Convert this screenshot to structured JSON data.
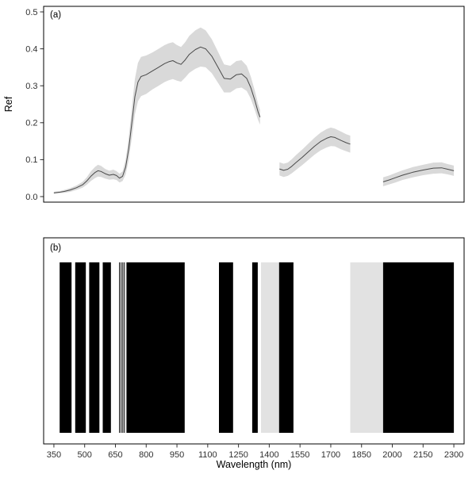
{
  "figure": {
    "background": "#ffffff",
    "panels": [
      {
        "id": "a",
        "label": "(a)"
      },
      {
        "id": "b",
        "label": "(b)"
      }
    ],
    "y_axis_title": "Ref",
    "x_axis_title": "Wavelength (nm)"
  },
  "chart_data": [
    {
      "type": "line",
      "panel": "(a)",
      "ylabel": "Ref",
      "ylim": [
        0.0,
        0.5
      ],
      "xlim": [
        350,
        2300
      ],
      "grid": false,
      "legend": "none",
      "line_color": "#4a4a4a",
      "band_color": "#d9d9d9",
      "yticks": [
        0.0,
        0.1,
        0.2,
        0.3,
        0.4,
        0.5
      ],
      "ytick_labels": [
        "0.0",
        "0.1",
        "0.2",
        "0.3",
        "0.4",
        "0.5"
      ],
      "segments": [
        {
          "x": [
            350,
            380,
            400,
            430,
            460,
            490,
            510,
            530,
            550,
            565,
            580,
            600,
            620,
            640,
            655,
            670,
            685,
            700,
            715,
            730,
            745,
            760,
            775,
            800,
            830,
            860,
            890,
            910,
            930,
            950,
            970,
            990,
            1010,
            1040,
            1065,
            1090,
            1120,
            1150,
            1180,
            1210,
            1240,
            1265,
            1290,
            1310,
            1330,
            1345,
            1355
          ],
          "mean": [
            0.01,
            0.012,
            0.014,
            0.018,
            0.024,
            0.032,
            0.042,
            0.055,
            0.065,
            0.07,
            0.068,
            0.062,
            0.058,
            0.06,
            0.057,
            0.05,
            0.055,
            0.08,
            0.13,
            0.2,
            0.27,
            0.31,
            0.325,
            0.33,
            0.34,
            0.35,
            0.36,
            0.365,
            0.368,
            0.362,
            0.358,
            0.37,
            0.385,
            0.398,
            0.405,
            0.4,
            0.38,
            0.35,
            0.32,
            0.318,
            0.33,
            0.332,
            0.32,
            0.295,
            0.26,
            0.23,
            0.215
          ],
          "lower": [
            0.007,
            0.009,
            0.01,
            0.013,
            0.018,
            0.024,
            0.032,
            0.042,
            0.05,
            0.054,
            0.053,
            0.049,
            0.046,
            0.047,
            0.045,
            0.038,
            0.042,
            0.06,
            0.1,
            0.16,
            0.222,
            0.258,
            0.272,
            0.278,
            0.29,
            0.3,
            0.31,
            0.315,
            0.318,
            0.314,
            0.311,
            0.322,
            0.335,
            0.346,
            0.352,
            0.35,
            0.334,
            0.308,
            0.282,
            0.282,
            0.293,
            0.295,
            0.286,
            0.265,
            0.234,
            0.208,
            0.195
          ],
          "upper": [
            0.013,
            0.015,
            0.018,
            0.023,
            0.03,
            0.04,
            0.052,
            0.068,
            0.08,
            0.086,
            0.083,
            0.075,
            0.07,
            0.073,
            0.069,
            0.062,
            0.068,
            0.1,
            0.16,
            0.24,
            0.318,
            0.362,
            0.378,
            0.382,
            0.39,
            0.4,
            0.41,
            0.415,
            0.418,
            0.41,
            0.405,
            0.418,
            0.435,
            0.45,
            0.458,
            0.45,
            0.426,
            0.392,
            0.358,
            0.354,
            0.367,
            0.369,
            0.354,
            0.325,
            0.286,
            0.252,
            0.235
          ]
        },
        {
          "x": [
            1450,
            1470,
            1490,
            1510,
            1530,
            1560,
            1590,
            1620,
            1650,
            1680,
            1700,
            1720,
            1750,
            1775,
            1795
          ],
          "mean": [
            0.075,
            0.071,
            0.074,
            0.082,
            0.092,
            0.106,
            0.121,
            0.136,
            0.149,
            0.158,
            0.162,
            0.16,
            0.152,
            0.146,
            0.142
          ],
          "lower": [
            0.057,
            0.053,
            0.056,
            0.063,
            0.072,
            0.085,
            0.099,
            0.113,
            0.125,
            0.133,
            0.137,
            0.136,
            0.128,
            0.123,
            0.119
          ],
          "upper": [
            0.093,
            0.089,
            0.092,
            0.101,
            0.112,
            0.127,
            0.143,
            0.159,
            0.173,
            0.183,
            0.187,
            0.184,
            0.176,
            0.169,
            0.165
          ]
        },
        {
          "x": [
            1955,
            1985,
            2015,
            2050,
            2100,
            2150,
            2200,
            2240,
            2270,
            2300
          ],
          "mean": [
            0.04,
            0.045,
            0.051,
            0.058,
            0.066,
            0.072,
            0.077,
            0.078,
            0.074,
            0.07
          ],
          "lower": [
            0.028,
            0.033,
            0.038,
            0.045,
            0.052,
            0.058,
            0.062,
            0.063,
            0.06,
            0.056
          ],
          "upper": [
            0.052,
            0.057,
            0.064,
            0.071,
            0.08,
            0.086,
            0.092,
            0.093,
            0.088,
            0.084
          ]
        }
      ]
    },
    {
      "type": "bands",
      "panel": "(b)",
      "xlabel": "Wavelength (nm)",
      "xticks": [
        350,
        500,
        650,
        800,
        950,
        1100,
        1250,
        1400,
        1550,
        1700,
        1850,
        2000,
        2150,
        2300
      ],
      "xtick_labels": [
        "350",
        "500",
        "650",
        "800",
        "950",
        "1100",
        "1250",
        "1400",
        "1550",
        "1700",
        "1850",
        "2000",
        "2150",
        "2300"
      ],
      "colors": {
        "black": "#000000",
        "lightgray": "#e2e2e2"
      },
      "bands": [
        {
          "from": 378,
          "to": 436,
          "color": "black"
        },
        {
          "from": 454,
          "to": 506,
          "color": "black"
        },
        {
          "from": 522,
          "to": 572,
          "color": "black"
        },
        {
          "from": 588,
          "to": 628,
          "color": "black"
        },
        {
          "from": 668,
          "to": 672,
          "color": "black"
        },
        {
          "from": 676,
          "to": 680,
          "color": "black"
        },
        {
          "from": 684,
          "to": 688,
          "color": "black"
        },
        {
          "from": 692,
          "to": 696,
          "color": "black"
        },
        {
          "from": 704,
          "to": 988,
          "color": "black"
        },
        {
          "from": 1155,
          "to": 1224,
          "color": "black"
        },
        {
          "from": 1317,
          "to": 1344,
          "color": "black"
        },
        {
          "from": 1360,
          "to": 1448,
          "color": "lightgray"
        },
        {
          "from": 1448,
          "to": 1518,
          "color": "black"
        },
        {
          "from": 1795,
          "to": 1955,
          "color": "lightgray"
        },
        {
          "from": 1955,
          "to": 2300,
          "color": "black"
        }
      ]
    }
  ]
}
